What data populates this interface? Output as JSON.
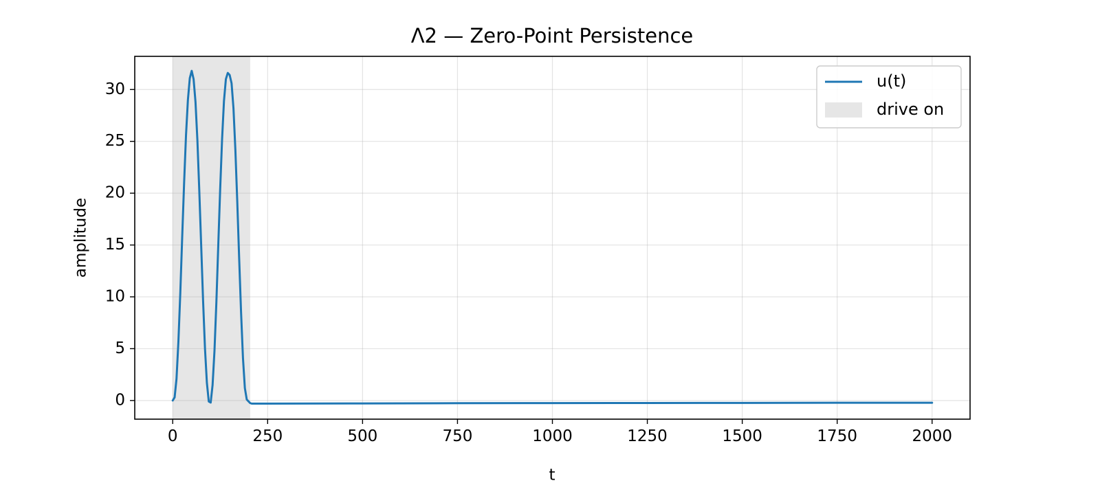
{
  "chart_data": {
    "type": "line",
    "title": "Λ2 — Zero-Point Persistence",
    "xlabel": "t",
    "ylabel": "amplitude",
    "xlim": [
      -100,
      2100
    ],
    "ylim": [
      -1.8,
      33.2
    ],
    "x_ticks": [
      0,
      250,
      500,
      750,
      1000,
      1250,
      1500,
      1750,
      2000
    ],
    "y_ticks": [
      0,
      5,
      10,
      15,
      20,
      25,
      30
    ],
    "grid": true,
    "legend_position": "upper right",
    "shaded_region": {
      "label": "drive on",
      "x_start": 0,
      "x_end": 204,
      "color": "#e6e6e6"
    },
    "series": [
      {
        "name": "u(t)",
        "color": "#1f77b4",
        "x": [
          0,
          5,
          10,
          15,
          20,
          25,
          30,
          35,
          40,
          45,
          50,
          55,
          60,
          65,
          70,
          75,
          80,
          85,
          90,
          95,
          100,
          105,
          110,
          115,
          120,
          125,
          130,
          135,
          140,
          145,
          150,
          155,
          160,
          165,
          170,
          175,
          180,
          185,
          190,
          195,
          200,
          204,
          208,
          215,
          250,
          500,
          750,
          1000,
          1250,
          1500,
          1750,
          2000
        ],
        "y": [
          0,
          0.3,
          2.1,
          5.7,
          10.4,
          15.8,
          21.0,
          25.6,
          29.0,
          31.1,
          31.8,
          31.0,
          28.8,
          25.1,
          20.2,
          14.9,
          9.6,
          5.0,
          1.7,
          -0.1,
          -0.2,
          1.5,
          4.8,
          9.5,
          15.0,
          20.4,
          25.2,
          28.9,
          31.0,
          31.6,
          31.4,
          30.6,
          28.2,
          24.2,
          19.2,
          13.7,
          8.5,
          4.1,
          1.2,
          0.1,
          -0.1,
          -0.25,
          -0.3,
          -0.3,
          -0.3,
          -0.28,
          -0.26,
          -0.25,
          -0.24,
          -0.23,
          -0.22,
          -0.22
        ]
      }
    ]
  }
}
